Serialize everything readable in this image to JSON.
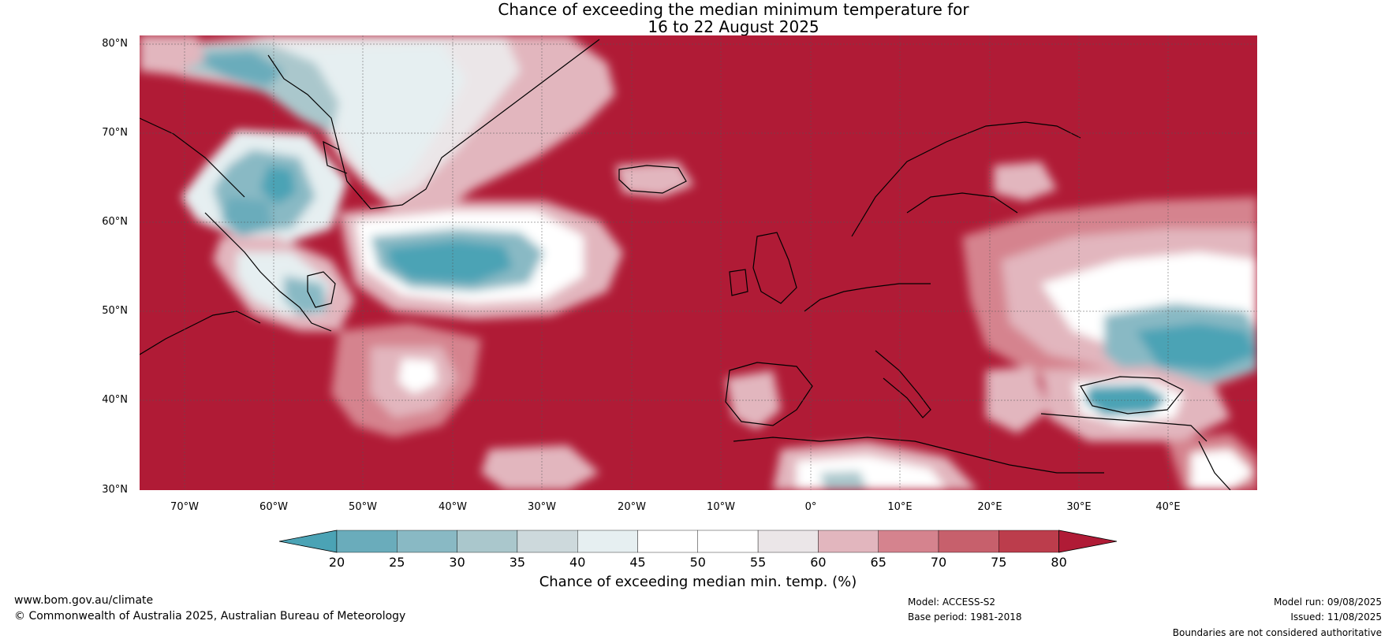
{
  "title_line1": "Chance of exceeding the median minimum temperature for",
  "title_line2": "16 to 22 August 2025",
  "lat_labels": [
    "80°N",
    "70°N",
    "60°N",
    "50°N",
    "40°N",
    "30°N"
  ],
  "lon_labels": [
    "70°W",
    "60°W",
    "50°W",
    "40°W",
    "30°W",
    "20°W",
    "10°W",
    "0°",
    "10°E",
    "20°E",
    "30°E",
    "40°E"
  ],
  "map_extent": {
    "lon_min": -75,
    "lon_max": 50,
    "lat_min": 30,
    "lat_max": 81
  },
  "colorbar": {
    "ticks": [
      "20",
      "25",
      "30",
      "35",
      "40",
      "45",
      "50",
      "55",
      "60",
      "65",
      "70",
      "75",
      "80"
    ],
    "colors": [
      "#4ba3b5",
      "#6aacbb",
      "#89b9c4",
      "#aac7cc",
      "#cdd9dc",
      "#e6eff1",
      "#ffffff",
      "#ffffff",
      "#ebe6e8",
      "#e2b6be",
      "#d5838e",
      "#c7606c",
      "#bc3d4c",
      "#b01b36"
    ],
    "label": "Chance of exceeding median min. temp. (%)"
  },
  "colors": {
    "background_high": "#b01b36",
    "low": "#4ba3b5",
    "mid": "#ffffff"
  },
  "footer": {
    "website": "www.bom.gov.au/climate",
    "copyright": "© Commonwealth of Australia 2025, Australian Bureau of Meteorology",
    "model": "Model: ACCESS-S2",
    "base_period": "Base period: 1981-2018",
    "model_run": "Model run: 09/08/2025",
    "issued": "Issued: 11/08/2025",
    "disclaimer": "Boundaries are not considered authoritative"
  }
}
